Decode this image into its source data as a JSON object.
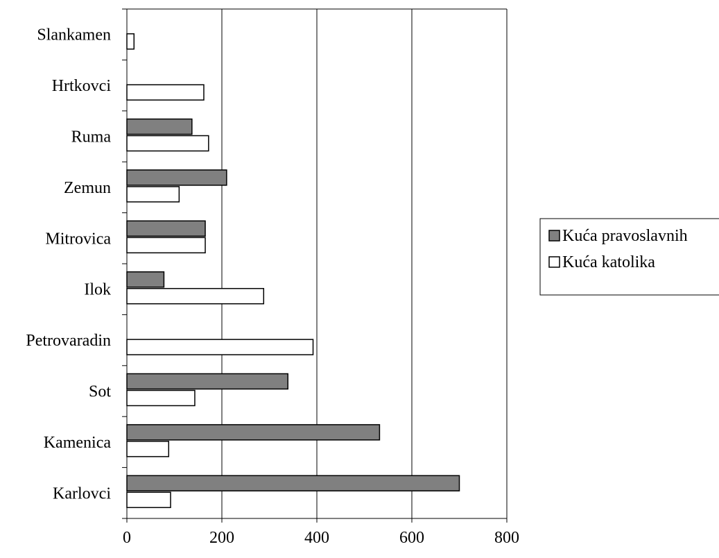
{
  "chart_data": {
    "type": "bar",
    "orientation": "horizontal",
    "title": "",
    "xlabel": "",
    "ylabel": "",
    "categories": [
      "Karlovci",
      "Kamenica",
      "Sot",
      "Petrovaradin",
      "Ilok",
      "Mitrovica",
      "Zemun",
      "Ruma",
      "Hrtkovci",
      "Slankamen"
    ],
    "series": [
      {
        "name": "Kuća pravoslavnih",
        "color": "#808080",
        "values": [
          700,
          532,
          339,
          0,
          78,
          165,
          210,
          137,
          0,
          0
        ]
      },
      {
        "name": "Kuća katolika",
        "color": "#ffffff",
        "values": [
          92,
          88,
          143,
          392,
          288,
          165,
          110,
          172,
          162,
          15
        ]
      }
    ],
    "xlim": [
      0,
      800
    ],
    "xticks": [
      "0",
      "200",
      "400",
      "600",
      "800"
    ],
    "grid": "vertical",
    "legend": "right"
  }
}
